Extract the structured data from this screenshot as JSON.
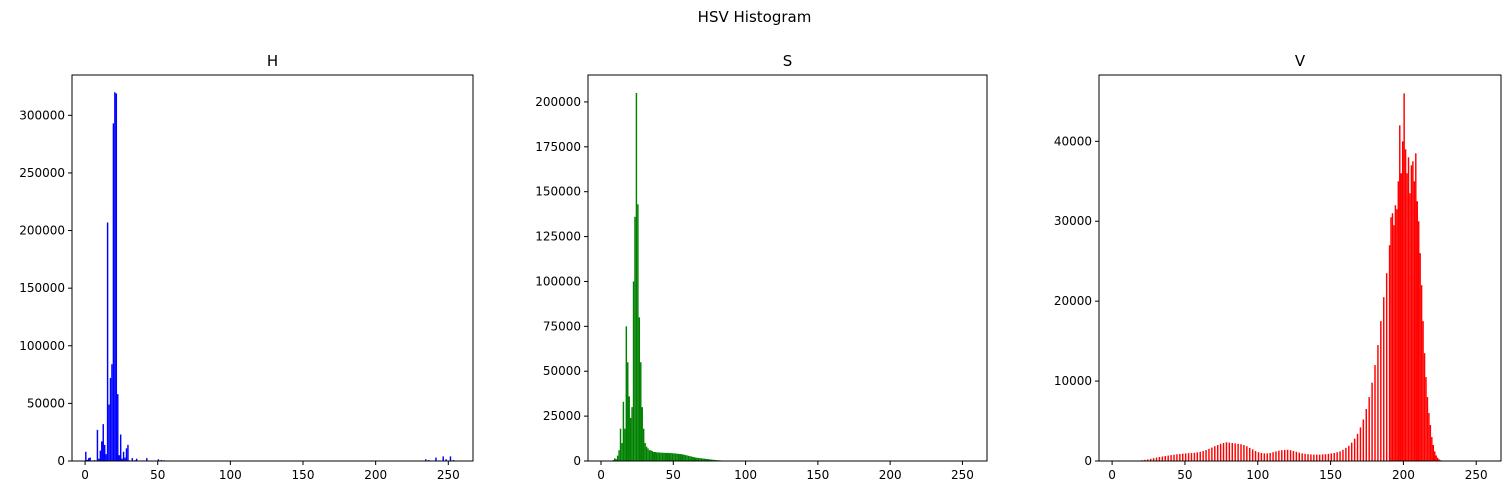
{
  "chart_data": {
    "type": "histogram",
    "suptitle": "HSV Histogram",
    "panels": [
      {
        "name": "H",
        "title": "H",
        "color": "#0000ff",
        "xlim": [
          -9,
          267
        ],
        "ylim": [
          0,
          335000
        ],
        "xticks": [
          0,
          50,
          100,
          150,
          200,
          250
        ],
        "yticks": [
          0,
          50000,
          100000,
          150000,
          200000,
          250000,
          300000
        ],
        "bins": [
          [
            0,
            8000
          ],
          [
            1,
            1000
          ],
          [
            2,
            2500
          ],
          [
            3,
            3000
          ],
          [
            4,
            500
          ],
          [
            5,
            400
          ],
          [
            6,
            800
          ],
          [
            7,
            300
          ],
          [
            8,
            27000
          ],
          [
            9,
            2000
          ],
          [
            10,
            9000
          ],
          [
            11,
            17000
          ],
          [
            12,
            32000
          ],
          [
            13,
            14000
          ],
          [
            14,
            6000
          ],
          [
            15,
            207000
          ],
          [
            16,
            49000
          ],
          [
            17,
            72000
          ],
          [
            18,
            84000
          ],
          [
            19,
            293000
          ],
          [
            20,
            320000
          ],
          [
            21,
            319000
          ],
          [
            22,
            58000
          ],
          [
            23,
            5000
          ],
          [
            24,
            23000
          ],
          [
            25,
            2000
          ],
          [
            26,
            8000
          ],
          [
            27,
            3000
          ],
          [
            28,
            11000
          ],
          [
            29,
            14000
          ],
          [
            30,
            600
          ],
          [
            31,
            300
          ],
          [
            32,
            2500
          ],
          [
            33,
            400
          ],
          [
            34,
            700
          ],
          [
            35,
            2000
          ],
          [
            36,
            300
          ],
          [
            38,
            500
          ],
          [
            40,
            500
          ],
          [
            42,
            2500
          ],
          [
            45,
            300
          ],
          [
            50,
            1500
          ],
          [
            52,
            800
          ],
          [
            54,
            600
          ],
          [
            60,
            400
          ],
          [
            70,
            300
          ],
          [
            80,
            300
          ],
          [
            90,
            300
          ],
          [
            100,
            300
          ],
          [
            120,
            200
          ],
          [
            150,
            200
          ],
          [
            180,
            200
          ],
          [
            200,
            200
          ],
          [
            234,
            1500
          ],
          [
            236,
            800
          ],
          [
            241,
            3000
          ],
          [
            243,
            500
          ],
          [
            246,
            4000
          ],
          [
            248,
            1500
          ],
          [
            251,
            4000
          ],
          [
            253,
            800
          ]
        ]
      },
      {
        "name": "S",
        "title": "S",
        "color": "#008000",
        "xlim": [
          -9,
          267
        ],
        "ylim": [
          0,
          215000
        ],
        "xticks": [
          0,
          50,
          100,
          150,
          200,
          250
        ],
        "yticks": [
          0,
          25000,
          50000,
          75000,
          100000,
          125000,
          150000,
          175000,
          200000
        ],
        "bins": [
          [
            0,
            0
          ],
          [
            1,
            0
          ],
          [
            2,
            0
          ],
          [
            3,
            0
          ],
          [
            4,
            0
          ],
          [
            5,
            0
          ],
          [
            6,
            0
          ],
          [
            7,
            200
          ],
          [
            8,
            500
          ],
          [
            9,
            1500
          ],
          [
            10,
            1000
          ],
          [
            11,
            3000
          ],
          [
            12,
            6000
          ],
          [
            13,
            18000
          ],
          [
            14,
            10000
          ],
          [
            15,
            33000
          ],
          [
            16,
            18000
          ],
          [
            17,
            75000
          ],
          [
            18,
            55000
          ],
          [
            19,
            36000
          ],
          [
            20,
            24000
          ],
          [
            21,
            30000
          ],
          [
            22,
            100000
          ],
          [
            23,
            136000
          ],
          [
            24,
            205000
          ],
          [
            25,
            143000
          ],
          [
            26,
            80000
          ],
          [
            27,
            55000
          ],
          [
            28,
            30000
          ],
          [
            29,
            18000
          ],
          [
            30,
            10000
          ],
          [
            31,
            8000
          ],
          [
            32,
            7000
          ],
          [
            33,
            6000
          ],
          [
            34,
            6000
          ],
          [
            35,
            5500
          ],
          [
            36,
            5000
          ],
          [
            37,
            5000
          ],
          [
            38,
            4800
          ],
          [
            39,
            4800
          ],
          [
            40,
            4700
          ],
          [
            41,
            4700
          ],
          [
            42,
            4600
          ],
          [
            43,
            4600
          ],
          [
            44,
            4500
          ],
          [
            45,
            4500
          ],
          [
            46,
            4500
          ],
          [
            47,
            4400
          ],
          [
            48,
            4400
          ],
          [
            49,
            4300
          ],
          [
            50,
            4300
          ],
          [
            51,
            4200
          ],
          [
            52,
            4100
          ],
          [
            53,
            4000
          ],
          [
            54,
            3900
          ],
          [
            55,
            3800
          ],
          [
            56,
            3700
          ],
          [
            57,
            3500
          ],
          [
            58,
            3300
          ],
          [
            59,
            3100
          ],
          [
            60,
            2900
          ],
          [
            61,
            2700
          ],
          [
            62,
            2500
          ],
          [
            63,
            2300
          ],
          [
            64,
            2100
          ],
          [
            65,
            1900
          ],
          [
            66,
            1800
          ],
          [
            67,
            1700
          ],
          [
            68,
            1600
          ],
          [
            69,
            1500
          ],
          [
            70,
            1400
          ],
          [
            71,
            1300
          ],
          [
            72,
            1200
          ],
          [
            73,
            1100
          ],
          [
            74,
            1000
          ],
          [
            75,
            900
          ],
          [
            76,
            800
          ],
          [
            77,
            700
          ],
          [
            78,
            600
          ],
          [
            79,
            500
          ],
          [
            80,
            450
          ],
          [
            81,
            400
          ],
          [
            82,
            350
          ],
          [
            83,
            300
          ],
          [
            84,
            250
          ],
          [
            85,
            200
          ],
          [
            86,
            150
          ],
          [
            87,
            120
          ],
          [
            88,
            100
          ],
          [
            89,
            80
          ],
          [
            90,
            60
          ]
        ]
      },
      {
        "name": "V",
        "title": "V",
        "color": "#ff0000",
        "xlim": [
          -9,
          267
        ],
        "ylim": [
          0,
          48300
        ],
        "xticks": [
          0,
          50,
          100,
          150,
          200,
          250
        ],
        "yticks": [
          0,
          10000,
          20000,
          30000,
          40000
        ],
        "bins": [
          [
            0,
            0
          ],
          [
            5,
            10
          ],
          [
            10,
            20
          ],
          [
            15,
            50
          ],
          [
            20,
            100
          ],
          [
            22,
            150
          ],
          [
            24,
            200
          ],
          [
            26,
            280
          ],
          [
            28,
            350
          ],
          [
            30,
            430
          ],
          [
            32,
            500
          ],
          [
            34,
            560
          ],
          [
            36,
            620
          ],
          [
            38,
            680
          ],
          [
            40,
            740
          ],
          [
            42,
            790
          ],
          [
            44,
            840
          ],
          [
            46,
            880
          ],
          [
            48,
            920
          ],
          [
            50,
            950
          ],
          [
            52,
            980
          ],
          [
            54,
            1000
          ],
          [
            56,
            1030
          ],
          [
            58,
            1080
          ],
          [
            60,
            1150
          ],
          [
            62,
            1250
          ],
          [
            64,
            1380
          ],
          [
            66,
            1520
          ],
          [
            68,
            1680
          ],
          [
            70,
            1850
          ],
          [
            72,
            2000
          ],
          [
            74,
            2150
          ],
          [
            76,
            2250
          ],
          [
            78,
            2350
          ],
          [
            80,
            2300
          ],
          [
            82,
            2250
          ],
          [
            84,
            2200
          ],
          [
            86,
            2150
          ],
          [
            88,
            2100
          ],
          [
            90,
            2000
          ],
          [
            92,
            1850
          ],
          [
            94,
            1650
          ],
          [
            96,
            1450
          ],
          [
            98,
            1250
          ],
          [
            100,
            1100
          ],
          [
            102,
            1000
          ],
          [
            104,
            950
          ],
          [
            106,
            950
          ],
          [
            108,
            1000
          ],
          [
            110,
            1100
          ],
          [
            112,
            1200
          ],
          [
            114,
            1300
          ],
          [
            116,
            1350
          ],
          [
            118,
            1400
          ],
          [
            120,
            1400
          ],
          [
            122,
            1350
          ],
          [
            124,
            1250
          ],
          [
            126,
            1150
          ],
          [
            128,
            1050
          ],
          [
            130,
            950
          ],
          [
            132,
            900
          ],
          [
            134,
            850
          ],
          [
            136,
            820
          ],
          [
            138,
            800
          ],
          [
            140,
            790
          ],
          [
            142,
            800
          ],
          [
            144,
            820
          ],
          [
            146,
            850
          ],
          [
            148,
            900
          ],
          [
            150,
            950
          ],
          [
            152,
            1000
          ],
          [
            154,
            1100
          ],
          [
            156,
            1200
          ],
          [
            158,
            1400
          ],
          [
            160,
            1650
          ],
          [
            162,
            1900
          ],
          [
            164,
            2300
          ],
          [
            166,
            2800
          ],
          [
            168,
            3400
          ],
          [
            170,
            4200
          ],
          [
            172,
            5200
          ],
          [
            174,
            6500
          ],
          [
            176,
            8000
          ],
          [
            178,
            9800
          ],
          [
            180,
            12000
          ],
          [
            182,
            14500
          ],
          [
            184,
            17500
          ],
          [
            186,
            20500
          ],
          [
            188,
            23500
          ],
          [
            190,
            27000
          ],
          [
            191,
            30500
          ],
          [
            192,
            31000
          ],
          [
            193,
            29500
          ],
          [
            194,
            32000
          ],
          [
            195,
            31500
          ],
          [
            196,
            35000
          ],
          [
            197,
            42000
          ],
          [
            198,
            36000
          ],
          [
            199,
            40000
          ],
          [
            200,
            46000
          ],
          [
            201,
            39000
          ],
          [
            202,
            36000
          ],
          [
            203,
            38000
          ],
          [
            204,
            33500
          ],
          [
            205,
            37000
          ],
          [
            206,
            37500
          ],
          [
            207,
            35000
          ],
          [
            208,
            38500
          ],
          [
            209,
            32500
          ],
          [
            210,
            30000
          ],
          [
            211,
            26000
          ],
          [
            212,
            22000
          ],
          [
            213,
            17500
          ],
          [
            214,
            13500
          ],
          [
            215,
            10500
          ],
          [
            216,
            8000
          ],
          [
            217,
            6000
          ],
          [
            218,
            4500
          ],
          [
            219,
            3000
          ],
          [
            220,
            2000
          ],
          [
            221,
            1200
          ],
          [
            222,
            700
          ],
          [
            223,
            400
          ],
          [
            224,
            200
          ],
          [
            225,
            100
          ],
          [
            226,
            50
          ]
        ]
      }
    ]
  }
}
